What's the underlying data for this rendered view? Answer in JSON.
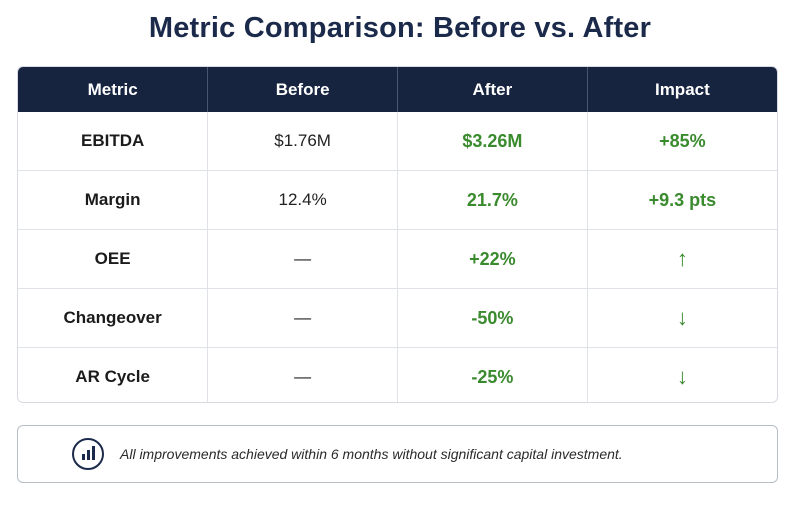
{
  "title": "Metric Comparison: Before vs. After",
  "table": {
    "headers": [
      "Metric",
      "Before",
      "After",
      "Impact"
    ],
    "rows": [
      {
        "metric": "EBITDA",
        "before": "$1.76M",
        "after": "$3.26M",
        "impact": "+85%"
      },
      {
        "metric": "Margin",
        "before": "12.4%",
        "after": "21.7%",
        "impact": "+9.3 pts"
      },
      {
        "metric": "OEE",
        "before": "—",
        "after": "+22%",
        "impact": "↑"
      },
      {
        "metric": "Changeover",
        "before": "—",
        "after": "-50%",
        "impact": "↓"
      },
      {
        "metric": "AR Cycle",
        "before": "—",
        "after": "-25%",
        "impact": "↓"
      }
    ]
  },
  "note": {
    "icon": "bar-chart-icon",
    "text": "All improvements achieved within 6 months without significant capital investment."
  },
  "colors": {
    "header_bg": "#17243f",
    "positive": "#3a8a2e",
    "title": "#1b2a4a"
  }
}
